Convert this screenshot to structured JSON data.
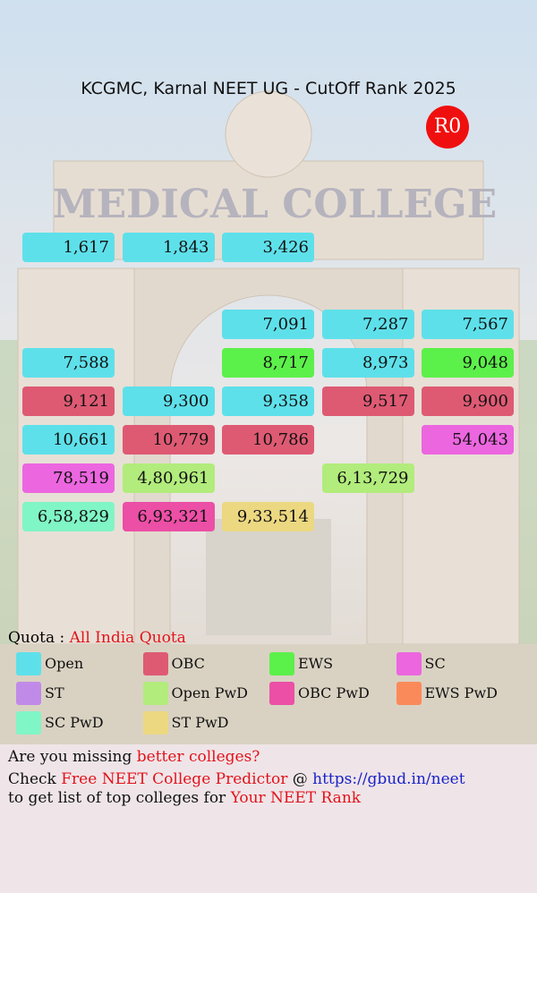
{
  "background": {
    "sign": "MEDICAL COLLEGE"
  },
  "header": {
    "title": "KCGMC, Karnal NEET UG - CutOff Rank 2025",
    "round": "R0"
  },
  "grid": {
    "rows": [
      [
        {
          "label": "1,617",
          "category": "Open"
        },
        {
          "label": "1,843",
          "category": "Open"
        },
        {
          "label": "3,426",
          "category": "Open"
        },
        null,
        null
      ],
      [
        null,
        null,
        null,
        null,
        null
      ],
      [
        null,
        null,
        {
          "label": "7,091",
          "category": "Open"
        },
        {
          "label": "7,287",
          "category": "Open"
        },
        {
          "label": "7,567",
          "category": "Open"
        }
      ],
      [
        {
          "label": "7,588",
          "category": "Open"
        },
        null,
        {
          "label": "8,717",
          "category": "EWS"
        },
        {
          "label": "8,973",
          "category": "Open"
        },
        {
          "label": "9,048",
          "category": "EWS"
        }
      ],
      [
        {
          "label": "9,121",
          "category": "OBC"
        },
        {
          "label": "9,300",
          "category": "Open"
        },
        {
          "label": "9,358",
          "category": "Open"
        },
        {
          "label": "9,517",
          "category": "OBC"
        },
        {
          "label": "9,900",
          "category": "OBC"
        }
      ],
      [
        {
          "label": "10,661",
          "category": "Open"
        },
        {
          "label": "10,779",
          "category": "OBC"
        },
        {
          "label": "10,786",
          "category": "OBC"
        },
        null,
        {
          "label": "54,043",
          "category": "SC"
        }
      ],
      [
        {
          "label": "78,519",
          "category": "SC"
        },
        {
          "label": "4,80,961",
          "category": "Open PwD"
        },
        null,
        {
          "label": "6,13,729",
          "category": "Open PwD"
        },
        null
      ],
      [
        {
          "label": "6,58,829",
          "category": "SC PwD"
        },
        {
          "label": "6,93,321",
          "category": "OBC PwD"
        },
        {
          "label": "9,33,514",
          "category": "ST PwD"
        },
        null,
        null
      ]
    ]
  },
  "quota": {
    "label": "Quota :",
    "value": "All India Quota"
  },
  "legend": [
    {
      "name": "Open",
      "color": "#5ee0ea"
    },
    {
      "name": "OBC",
      "color": "#de5a73"
    },
    {
      "name": "EWS",
      "color": "#5cf04a"
    },
    {
      "name": "SC",
      "color": "#ec66e0"
    },
    {
      "name": "ST",
      "color": "#c08be8"
    },
    {
      "name": "Open PwD",
      "color": "#b2ec7c"
    },
    {
      "name": "OBC PwD",
      "color": "#ec4fa6"
    },
    {
      "name": "EWS PwD",
      "color": "#fb8a5a"
    },
    {
      "name": "SC PwD",
      "color": "#80f5c5"
    },
    {
      "name": "ST PwD",
      "color": "#ecd881"
    }
  ],
  "footer": {
    "line1": [
      "Are you missing",
      "better colleges?"
    ],
    "line2": [
      "Check",
      "Free NEET College Predictor",
      "@",
      "https://gbud.in/neet"
    ],
    "line3": [
      "to get list of top colleges for",
      "Your NEET Rank"
    ]
  }
}
